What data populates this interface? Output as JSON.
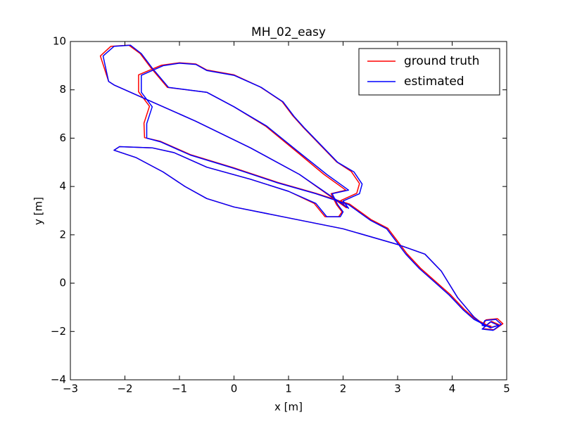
{
  "chart_data": {
    "type": "line",
    "title": "MH_02_easy",
    "x_label": "x [m]",
    "y_label": "y [m]",
    "xlim": [
      -3,
      5
    ],
    "ylim": [
      -4,
      10
    ],
    "xticks": [
      {
        "value": -3,
        "label": "−3"
      },
      {
        "value": -2,
        "label": "−2"
      },
      {
        "value": -1,
        "label": "−1"
      },
      0,
      1,
      2,
      3,
      4,
      5
    ],
    "yticks": [
      {
        "value": -4,
        "label": "−4"
      },
      {
        "value": -2,
        "label": "−2"
      },
      0,
      2,
      4,
      6,
      8,
      10
    ],
    "legend": "upper right",
    "grid": false,
    "series": [
      {
        "name": "ground truth",
        "color": "#ff0000",
        "x": [
          4.72,
          4.57,
          4.62,
          4.83,
          4.93,
          4.77,
          4.56,
          4.72,
          4.87,
          4.72,
          4.42,
          4.22,
          3.97,
          3.72,
          3.42,
          3.17,
          2.97,
          2.82,
          2.52,
          2.12,
          1.5,
          0.8,
          0,
          -0.8,
          -1.35,
          -1.64,
          -1.65,
          -1.55,
          -1.75,
          -1.75,
          -1.33,
          -1.0,
          -0.7,
          -0.5,
          0,
          0.48,
          0.88,
          1.08,
          1.28,
          1.58,
          1.88,
          2.15,
          2.3,
          2.25,
          1.96,
          2.06,
          1.2,
          0.3,
          -0.7,
          -1.5,
          -2.2,
          -2.3,
          -2.45,
          -2.26,
          -1.93,
          -1.72,
          -1.52,
          -1.22,
          -0.5,
          0,
          0.58,
          1.17,
          1.65,
          2.05,
          1.78,
          1.88,
          1.98,
          1.92,
          1.67,
          1.47,
          1.0,
          0.3,
          -0.5,
          -1.1,
          -1.5,
          -2.1,
          -2.2,
          -1.8,
          -1.3,
          -0.9,
          -0.5,
          0,
          1.0,
          2.0,
          3.0,
          3.5,
          3.8,
          4.1,
          4.4,
          4.62
        ],
        "values": [
          -1.78,
          -1.72,
          -1.52,
          -1.47,
          -1.68,
          -1.93,
          -1.88,
          -1.58,
          -1.73,
          -1.83,
          -1.48,
          -1.08,
          -0.48,
          0.02,
          0.62,
          1.22,
          1.82,
          2.27,
          2.62,
          3.27,
          3.72,
          4.17,
          4.77,
          5.32,
          5.87,
          6.02,
          6.62,
          7.32,
          7.92,
          8.62,
          9.02,
          9.12,
          9.07,
          8.82,
          8.62,
          8.12,
          7.52,
          6.92,
          6.42,
          5.72,
          5.02,
          4.62,
          4.12,
          3.72,
          3.42,
          3.12,
          4.5,
          5.6,
          6.7,
          7.5,
          8.2,
          8.35,
          9.4,
          9.8,
          9.85,
          9.5,
          8.9,
          8.1,
          7.9,
          7.3,
          6.5,
          5.4,
          4.5,
          3.85,
          3.7,
          3.25,
          2.95,
          2.75,
          2.75,
          3.3,
          3.8,
          4.3,
          4.8,
          5.4,
          5.6,
          5.65,
          5.5,
          5.2,
          4.6,
          4.0,
          3.5,
          3.15,
          2.7,
          2.25,
          1.6,
          1.2,
          0.5,
          -0.6,
          -1.4,
          -1.78
        ]
      },
      {
        "name": "estimated",
        "color": "#0000ff",
        "x": [
          4.7,
          4.55,
          4.6,
          4.8,
          4.9,
          4.75,
          4.55,
          4.7,
          4.85,
          4.7,
          4.4,
          4.2,
          3.95,
          3.7,
          3.4,
          3.15,
          2.95,
          2.8,
          2.5,
          2.1,
          1.5,
          0.8,
          0,
          -0.8,
          -1.35,
          -1.6,
          -1.6,
          -1.5,
          -1.7,
          -1.7,
          -1.3,
          -1.0,
          -0.7,
          -0.5,
          0,
          0.5,
          0.9,
          1.1,
          1.3,
          1.6,
          1.9,
          2.2,
          2.35,
          2.3,
          2.0,
          2.1,
          1.2,
          0.3,
          -0.7,
          -1.5,
          -2.2,
          -2.3,
          -2.4,
          -2.2,
          -1.9,
          -1.7,
          -1.5,
          -1.2,
          -0.5,
          0,
          0.6,
          1.2,
          1.7,
          2.1,
          1.8,
          1.9,
          2.0,
          1.95,
          1.7,
          1.5,
          1.0,
          0.3,
          -0.5,
          -1.1,
          -1.5,
          -2.1,
          -2.2,
          -1.8,
          -1.3,
          -0.9,
          -0.5,
          0,
          1.0,
          2.0,
          3.0,
          3.5,
          3.8,
          4.1,
          4.4,
          4.6
        ],
        "values": [
          -1.8,
          -1.75,
          -1.55,
          -1.5,
          -1.7,
          -1.95,
          -1.9,
          -1.6,
          -1.75,
          -1.85,
          -1.5,
          -1.1,
          -0.5,
          0,
          0.6,
          1.2,
          1.8,
          2.25,
          2.6,
          3.25,
          3.7,
          4.15,
          4.75,
          5.3,
          5.85,
          6.0,
          6.6,
          7.3,
          7.9,
          8.6,
          9.0,
          9.1,
          9.05,
          8.8,
          8.6,
          8.1,
          7.5,
          6.9,
          6.4,
          5.7,
          5.0,
          4.6,
          4.1,
          3.7,
          3.4,
          3.1,
          4.5,
          5.6,
          6.7,
          7.5,
          8.2,
          8.35,
          9.4,
          9.8,
          9.85,
          9.5,
          8.9,
          8.1,
          7.9,
          7.3,
          6.5,
          5.4,
          4.5,
          3.85,
          3.7,
          3.25,
          2.95,
          2.75,
          2.75,
          3.3,
          3.8,
          4.3,
          4.8,
          5.4,
          5.6,
          5.65,
          5.5,
          5.2,
          4.6,
          4.0,
          3.5,
          3.15,
          2.7,
          2.25,
          1.6,
          1.2,
          0.5,
          -0.6,
          -1.4,
          -1.8
        ]
      }
    ]
  }
}
